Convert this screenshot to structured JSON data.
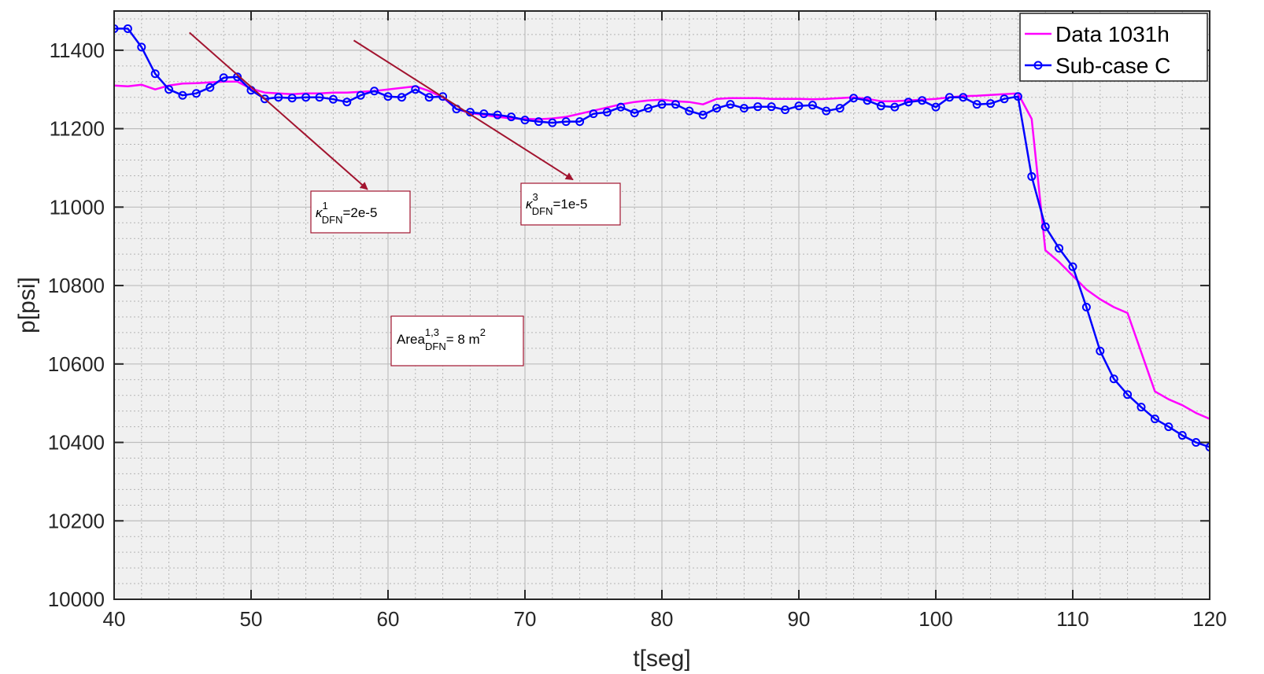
{
  "chart_data": {
    "type": "line",
    "xlabel": "t[seg]",
    "ylabel": "p[psi]",
    "xlim": [
      40,
      120
    ],
    "ylim": [
      10000,
      11500
    ],
    "x_ticks": [
      40,
      50,
      60,
      70,
      80,
      90,
      100,
      110,
      120
    ],
    "y_ticks": [
      10000,
      10200,
      10400,
      10600,
      10800,
      11000,
      11200,
      11400
    ],
    "grid": true,
    "minor_grid": true,
    "legend_position": "top-right",
    "series": [
      {
        "name": "Data 1031h",
        "color": "#ff00ff",
        "marker": "none",
        "x": [
          40,
          41,
          42,
          43,
          44,
          45,
          46,
          47,
          48,
          49,
          50,
          51,
          52,
          53,
          54,
          55,
          56,
          57,
          58,
          59,
          60,
          61,
          62,
          63,
          64,
          65,
          66,
          67,
          68,
          69,
          70,
          71,
          72,
          73,
          74,
          75,
          76,
          77,
          78,
          79,
          80,
          81,
          82,
          83,
          84,
          85,
          86,
          87,
          88,
          89,
          90,
          91,
          92,
          93,
          94,
          95,
          96,
          97,
          98,
          99,
          100,
          101,
          102,
          103,
          104,
          105,
          106,
          107,
          108,
          109,
          110,
          111,
          112,
          113,
          114,
          115,
          116,
          117,
          118,
          119,
          120
        ],
        "y": [
          11310,
          11308,
          11312,
          11300,
          11310,
          11315,
          11316,
          11318,
          11320,
          11320,
          11302,
          11292,
          11290,
          11288,
          11290,
          11290,
          11292,
          11292,
          11294,
          11296,
          11300,
          11304,
          11308,
          11296,
          11280,
          11250,
          11240,
          11235,
          11230,
          11226,
          11225,
          11224,
          11226,
          11230,
          11238,
          11246,
          11254,
          11262,
          11268,
          11272,
          11274,
          11270,
          11268,
          11262,
          11276,
          11278,
          11278,
          11278,
          11276,
          11276,
          11276,
          11275,
          11276,
          11278,
          11280,
          11276,
          11270,
          11270,
          11272,
          11274,
          11276,
          11280,
          11283,
          11284,
          11286,
          11288,
          11290,
          11225,
          10890,
          10860,
          10825,
          10790,
          10765,
          10745,
          10730,
          10630,
          10530,
          10510,
          10495,
          10475,
          10460
        ]
      },
      {
        "name": "Sub-case C",
        "color": "#0000ff",
        "marker": "circle",
        "x": [
          40,
          41,
          42,
          43,
          44,
          45,
          46,
          47,
          48,
          49,
          50,
          51,
          52,
          53,
          54,
          55,
          56,
          57,
          58,
          59,
          60,
          61,
          62,
          63,
          64,
          65,
          66,
          67,
          68,
          69,
          70,
          71,
          72,
          73,
          74,
          75,
          76,
          77,
          78,
          79,
          80,
          81,
          82,
          83,
          84,
          85,
          86,
          87,
          88,
          89,
          90,
          91,
          92,
          93,
          94,
          95,
          96,
          97,
          98,
          99,
          100,
          101,
          102,
          103,
          104,
          105,
          106,
          107,
          108,
          109,
          110,
          111,
          112,
          113,
          114,
          115,
          116,
          117,
          118,
          119,
          120
        ],
        "y": [
          11455,
          11455,
          11408,
          11340,
          11300,
          11285,
          11290,
          11305,
          11330,
          11332,
          11298,
          11276,
          11280,
          11278,
          11280,
          11280,
          11275,
          11268,
          11285,
          11296,
          11282,
          11280,
          11300,
          11280,
          11282,
          11250,
          11242,
          11238,
          11235,
          11230,
          11222,
          11218,
          11215,
          11218,
          11218,
          11238,
          11242,
          11255,
          11240,
          11252,
          11262,
          11262,
          11245,
          11235,
          11252,
          11262,
          11252,
          11256,
          11256,
          11248,
          11258,
          11260,
          11245,
          11252,
          11278,
          11272,
          11258,
          11255,
          11268,
          11272,
          11255,
          11280,
          11280,
          11262,
          11264,
          11276,
          11282,
          11078,
          10950,
          10895,
          10848,
          10745,
          10633,
          10562,
          10522,
          10490,
          10460,
          10440,
          10418,
          10400,
          10388
        ]
      }
    ],
    "annotations": {
      "box1": {
        "prefix": "κ",
        "sup": "1",
        "sub": "DFN",
        "text": "=2e-5",
        "arrow_from": [
          45.5,
          11445
        ],
        "arrow_to": [
          58.5,
          11045
        ]
      },
      "box2": {
        "prefix": "κ",
        "sup": "3",
        "sub": "DFN",
        "text": "=1e-5",
        "arrow_from": [
          57.5,
          11425
        ],
        "arrow_to": [
          73.5,
          11070
        ]
      },
      "box3": {
        "prefix": "Area",
        "sup": "1,3",
        "sub": "DFN",
        "text": "= 8 m",
        "tail_sup": "2"
      }
    }
  }
}
